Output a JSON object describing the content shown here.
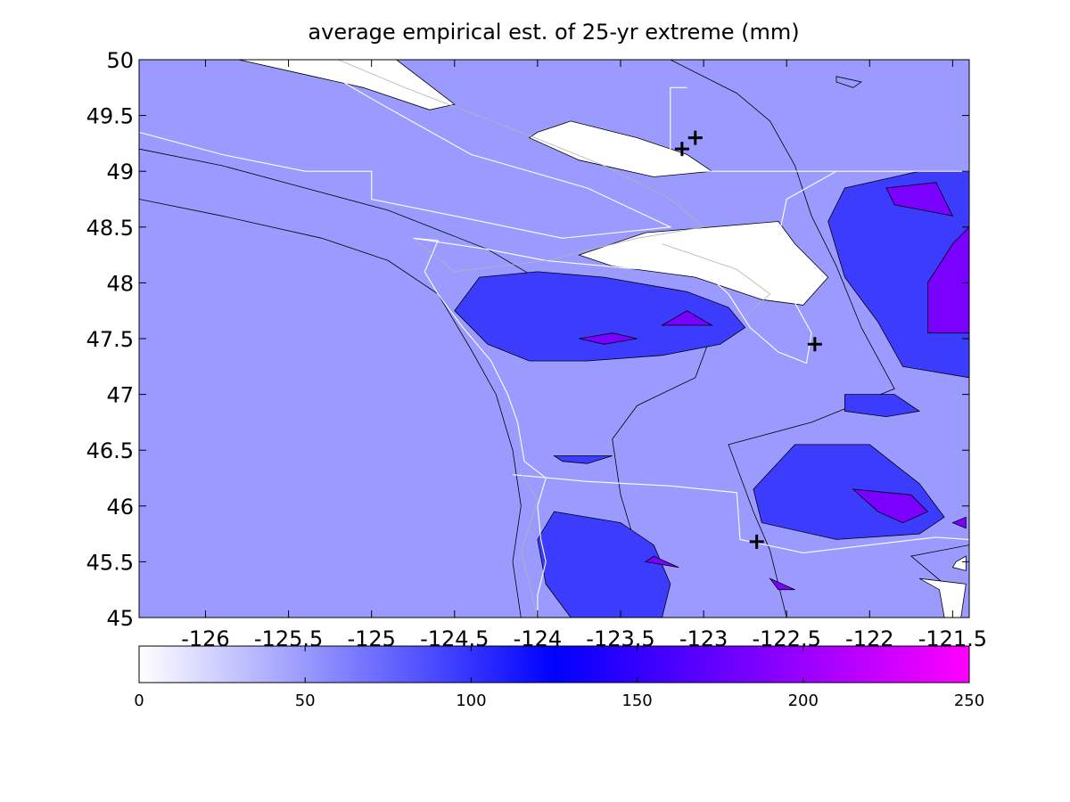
{
  "chart_data": {
    "type": "contour",
    "title": "average empirical est. of 25-yr extreme (mm)",
    "xlabel": "",
    "ylabel": "",
    "xlim": [
      -126.4,
      -121.4
    ],
    "ylim": [
      45,
      50
    ],
    "x_ticks": [
      -126,
      -125.5,
      -125,
      -124.5,
      -124,
      -123.5,
      -123,
      -122.5,
      -122,
      -121.5
    ],
    "x_tick_labels": [
      "-126",
      "-125.5",
      "-125",
      "-124.5",
      "-124",
      "-123.5",
      "-123",
      "-122.5",
      "-122",
      "-121.5"
    ],
    "y_ticks": [
      45,
      45.5,
      46,
      46.5,
      47,
      47.5,
      48,
      48.5,
      49,
      49.5,
      50
    ],
    "y_tick_labels": [
      "45",
      "45.5",
      "46",
      "46.5",
      "47",
      "47.5",
      "48",
      "48.5",
      "49",
      "49.5",
      "50"
    ],
    "contour_levels": [
      0,
      50,
      100,
      150,
      200,
      250
    ],
    "colormap": [
      {
        "value": 0,
        "color": "#ffffff"
      },
      {
        "value": 125,
        "color": "#0000ff"
      },
      {
        "value": 250,
        "color": "#ff00ff"
      }
    ],
    "colorbar": {
      "location": "below",
      "ticks": [
        0,
        50,
        100,
        150,
        200,
        250
      ],
      "tick_labels": [
        "0",
        "50",
        "100",
        "150",
        "200",
        "250"
      ]
    },
    "grid": false,
    "regions": [
      {
        "band": "50-100",
        "color": "#9b9bff",
        "points": [
          [
            -126.4,
            48.75
          ],
          [
            -125.9,
            48.6
          ],
          [
            -125.3,
            48.4
          ],
          [
            -124.9,
            48.2
          ],
          [
            -124.6,
            47.9
          ],
          [
            -124.4,
            47.4
          ],
          [
            -124.25,
            47.0
          ],
          [
            -124.15,
            46.5
          ],
          [
            -124.1,
            46.0
          ],
          [
            -124.15,
            45.5
          ],
          [
            -124.1,
            45.0
          ],
          [
            -126.4,
            45.0
          ]
        ]
      },
      {
        "band": "50-100",
        "color": "#9b9bff",
        "points": [
          [
            -126.4,
            50.0
          ],
          [
            -123.2,
            50.0
          ],
          [
            -122.8,
            49.7
          ],
          [
            -122.6,
            49.45
          ],
          [
            -122.45,
            49.05
          ],
          [
            -122.35,
            48.6
          ],
          [
            -122.2,
            48.15
          ],
          [
            -122.05,
            47.6
          ],
          [
            -121.85,
            47.05
          ],
          [
            -122.35,
            46.75
          ],
          [
            -122.85,
            46.55
          ],
          [
            -122.7,
            45.95
          ],
          [
            -122.6,
            45.6
          ],
          [
            -122.5,
            45.0
          ],
          [
            -123.25,
            45.0
          ],
          [
            -123.4,
            45.6
          ],
          [
            -123.5,
            46.1
          ],
          [
            -123.55,
            46.6
          ],
          [
            -123.4,
            46.9
          ],
          [
            -123.05,
            47.15
          ],
          [
            -122.95,
            47.55
          ],
          [
            -123.5,
            47.8
          ],
          [
            -123.9,
            47.95
          ],
          [
            -124.3,
            48.3
          ],
          [
            -124.9,
            48.65
          ],
          [
            -125.4,
            48.85
          ],
          [
            -125.9,
            49.05
          ],
          [
            -126.4,
            49.2
          ]
        ]
      },
      {
        "band": "50-100",
        "color": "#9b9bff",
        "points": [
          [
            -121.75,
            45.55
          ],
          [
            -121.55,
            45.3
          ],
          [
            -121.5,
            45.0
          ],
          [
            -121.4,
            45.0
          ],
          [
            -121.4,
            45.65
          ]
        ]
      },
      {
        "band": "50-100",
        "color": "#9b9bff",
        "points": [
          [
            -122.2,
            49.85
          ],
          [
            -122.05,
            49.8
          ],
          [
            -122.1,
            49.75
          ],
          [
            -122.2,
            49.8
          ]
        ]
      },
      {
        "band": "0-50",
        "color": "#ffffff",
        "points": [
          [
            -125.8,
            50.0
          ],
          [
            -124.85,
            50.0
          ],
          [
            -124.5,
            49.6
          ],
          [
            -124.65,
            49.55
          ],
          [
            -125.05,
            49.75
          ],
          [
            -125.35,
            49.85
          ]
        ]
      },
      {
        "band": "0-50",
        "color": "#ffffff",
        "points": [
          [
            -124.0,
            49.35
          ],
          [
            -123.8,
            49.45
          ],
          [
            -123.4,
            49.3
          ],
          [
            -123.1,
            49.15
          ],
          [
            -122.95,
            49.0
          ],
          [
            -123.3,
            48.95
          ],
          [
            -123.75,
            49.1
          ],
          [
            -124.05,
            49.3
          ]
        ]
      },
      {
        "band": "0-50",
        "color": "#ffffff",
        "points": [
          [
            -123.75,
            48.25
          ],
          [
            -123.35,
            48.45
          ],
          [
            -122.55,
            48.55
          ],
          [
            -122.45,
            48.35
          ],
          [
            -122.25,
            48.05
          ],
          [
            -122.4,
            47.8
          ],
          [
            -122.65,
            47.85
          ],
          [
            -123.05,
            48.05
          ],
          [
            -123.55,
            48.15
          ]
        ]
      },
      {
        "band": "0-50",
        "color": "#ffffff",
        "points": [
          [
            -121.7,
            45.35
          ],
          [
            -121.58,
            45.25
          ],
          [
            -121.55,
            45.0
          ],
          [
            -121.45,
            45.0
          ],
          [
            -121.42,
            45.3
          ]
        ]
      },
      {
        "band": "0-50",
        "color": "#ffffff",
        "points": [
          [
            -121.5,
            45.45
          ],
          [
            -121.42,
            45.42
          ],
          [
            -121.42,
            45.55
          ],
          [
            -121.48,
            45.5
          ]
        ]
      },
      {
        "band": "100-150",
        "color": "#3c3cff",
        "points": [
          [
            -124.35,
            48.05
          ],
          [
            -124.0,
            48.1
          ],
          [
            -123.6,
            48.05
          ],
          [
            -123.1,
            47.92
          ],
          [
            -122.85,
            47.78
          ],
          [
            -122.75,
            47.6
          ],
          [
            -122.9,
            47.45
          ],
          [
            -123.25,
            47.35
          ],
          [
            -123.7,
            47.3
          ],
          [
            -124.05,
            47.3
          ],
          [
            -124.3,
            47.45
          ],
          [
            -124.5,
            47.75
          ]
        ]
      },
      {
        "band": "100-150",
        "color": "#3c3cff",
        "points": [
          [
            -123.9,
            46.45
          ],
          [
            -123.55,
            46.45
          ],
          [
            -123.7,
            46.38
          ],
          [
            -123.85,
            46.4
          ]
        ]
      },
      {
        "band": "100-150",
        "color": "#3c3cff",
        "points": [
          [
            -123.9,
            45.95
          ],
          [
            -123.5,
            45.85
          ],
          [
            -123.3,
            45.65
          ],
          [
            -123.2,
            45.3
          ],
          [
            -123.25,
            45.0
          ],
          [
            -123.8,
            45.0
          ],
          [
            -123.95,
            45.3
          ],
          [
            -124.0,
            45.7
          ]
        ]
      },
      {
        "band": "100-150",
        "color": "#3c3cff",
        "points": [
          [
            -122.45,
            46.55
          ],
          [
            -122.0,
            46.55
          ],
          [
            -121.7,
            46.2
          ],
          [
            -121.55,
            45.9
          ],
          [
            -121.7,
            45.75
          ],
          [
            -122.2,
            45.7
          ],
          [
            -122.65,
            45.85
          ],
          [
            -122.7,
            46.15
          ]
        ]
      },
      {
        "band": "100-150",
        "color": "#3c3cff",
        "points": [
          [
            -121.7,
            49.0
          ],
          [
            -121.4,
            49.0
          ],
          [
            -121.4,
            47.15
          ],
          [
            -121.8,
            47.25
          ],
          [
            -121.95,
            47.65
          ],
          [
            -122.15,
            48.05
          ],
          [
            -122.25,
            48.55
          ],
          [
            -122.15,
            48.85
          ]
        ]
      },
      {
        "band": "100-150",
        "color": "#3c3cff",
        "points": [
          [
            -122.15,
            47.0
          ],
          [
            -121.85,
            47.0
          ],
          [
            -121.7,
            46.85
          ],
          [
            -121.9,
            46.8
          ],
          [
            -122.15,
            46.85
          ]
        ]
      },
      {
        "band": "150-200",
        "color": "#7a00ff",
        "points": [
          [
            -123.55,
            47.55
          ],
          [
            -123.4,
            47.5
          ],
          [
            -123.6,
            47.45
          ],
          [
            -123.75,
            47.5
          ]
        ]
      },
      {
        "band": "150-200",
        "color": "#7a00ff",
        "points": [
          [
            -123.1,
            47.75
          ],
          [
            -122.95,
            47.62
          ],
          [
            -123.25,
            47.62
          ]
        ]
      },
      {
        "band": "150-200",
        "color": "#7a00ff",
        "points": [
          [
            -122.1,
            46.15
          ],
          [
            -121.95,
            45.95
          ],
          [
            -121.8,
            45.85
          ],
          [
            -121.65,
            45.95
          ],
          [
            -121.75,
            46.1
          ]
        ]
      },
      {
        "band": "150-200",
        "color": "#7a00ff",
        "points": [
          [
            -121.5,
            45.85
          ],
          [
            -121.42,
            45.9
          ],
          [
            -121.42,
            45.8
          ]
        ]
      },
      {
        "band": "150-200",
        "color": "#7a00ff",
        "points": [
          [
            -121.6,
            48.9
          ],
          [
            -121.9,
            48.85
          ],
          [
            -121.85,
            48.7
          ],
          [
            -121.5,
            48.6
          ]
        ]
      },
      {
        "band": "150-200",
        "color": "#7a00ff",
        "points": [
          [
            -121.4,
            48.5
          ],
          [
            -121.4,
            47.55
          ],
          [
            -121.65,
            47.55
          ],
          [
            -121.65,
            48.0
          ],
          [
            -121.5,
            48.35
          ]
        ]
      },
      {
        "band": "150-200",
        "color": "#7a00ff",
        "points": [
          [
            -123.3,
            45.55
          ],
          [
            -123.15,
            45.45
          ],
          [
            -123.35,
            45.5
          ]
        ]
      },
      {
        "band": "150-200",
        "color": "#7a00ff",
        "points": [
          [
            -122.6,
            45.35
          ],
          [
            -122.45,
            45.25
          ],
          [
            -122.55,
            45.25
          ]
        ]
      }
    ],
    "coastline_outlines": [
      {
        "style": "white",
        "points": [
          [
            -124.75,
            48.4
          ],
          [
            -124.6,
            48.38
          ],
          [
            -124.68,
            48.1
          ],
          [
            -124.6,
            47.9
          ],
          [
            -124.45,
            47.6
          ],
          [
            -124.28,
            47.3
          ],
          [
            -124.18,
            47.0
          ],
          [
            -124.12,
            46.75
          ],
          [
            -124.08,
            46.4
          ],
          [
            -123.95,
            46.25
          ],
          [
            -124.0,
            46.0
          ],
          [
            -123.98,
            45.7
          ],
          [
            -123.95,
            45.5
          ],
          [
            -124.0,
            45.2
          ],
          [
            -124.0,
            45.0
          ]
        ]
      },
      {
        "style": "white",
        "points": [
          [
            -124.75,
            48.4
          ],
          [
            -124.3,
            48.3
          ],
          [
            -123.95,
            48.2
          ],
          [
            -123.45,
            48.13
          ],
          [
            -123.0,
            48.1
          ],
          [
            -122.85,
            47.9
          ],
          [
            -122.72,
            47.6
          ],
          [
            -122.55,
            47.38
          ],
          [
            -122.38,
            47.28
          ],
          [
            -122.35,
            47.55
          ],
          [
            -122.45,
            47.82
          ],
          [
            -122.38,
            48.1
          ],
          [
            -122.55,
            48.4
          ],
          [
            -122.5,
            48.75
          ],
          [
            -122.2,
            49.0
          ]
        ]
      },
      {
        "style": "white",
        "points": [
          [
            -124.15,
            46.28
          ],
          [
            -123.7,
            46.22
          ],
          [
            -123.2,
            46.18
          ],
          [
            -122.8,
            46.12
          ],
          [
            -122.78,
            45.7
          ],
          [
            -122.4,
            45.58
          ],
          [
            -122.0,
            45.65
          ],
          [
            -121.6,
            45.72
          ],
          [
            -121.4,
            45.7
          ]
        ]
      },
      {
        "style": "white",
        "points": [
          [
            -123.1,
            49.75
          ],
          [
            -123.2,
            49.75
          ],
          [
            -123.2,
            49.0
          ],
          [
            -121.4,
            49.0
          ]
        ]
      },
      {
        "style": "white",
        "points": [
          [
            -126.4,
            49.35
          ],
          [
            -125.9,
            49.15
          ],
          [
            -125.4,
            49.0
          ],
          [
            -125.0,
            49.0
          ],
          [
            -125.0,
            48.75
          ],
          [
            -124.5,
            48.6
          ],
          [
            -123.85,
            48.4
          ],
          [
            -123.2,
            48.5
          ],
          [
            -123.7,
            48.85
          ],
          [
            -124.4,
            49.15
          ],
          [
            -125.0,
            49.65
          ],
          [
            -125.4,
            50.0
          ]
        ]
      },
      {
        "style": "gray",
        "points": [
          [
            -125.2,
            50.0
          ],
          [
            -124.8,
            49.75
          ],
          [
            -124.1,
            49.35
          ],
          [
            -123.6,
            49.05
          ],
          [
            -123.2,
            48.75
          ],
          [
            -123.0,
            48.5
          ],
          [
            -123.4,
            48.4
          ],
          [
            -123.95,
            48.2
          ],
          [
            -124.5,
            48.1
          ],
          [
            -124.75,
            48.4
          ]
        ]
      },
      {
        "style": "gray",
        "points": [
          [
            -123.25,
            48.35
          ],
          [
            -122.8,
            48.12
          ],
          [
            -122.6,
            47.9
          ],
          [
            -122.75,
            47.7
          ]
        ]
      },
      {
        "style": "gray",
        "points": [
          [
            -124.0,
            45.0
          ],
          [
            -124.1,
            45.6
          ],
          [
            -124.0,
            46.05
          ],
          [
            -124.1,
            46.3
          ]
        ]
      }
    ],
    "markers": [
      {
        "lon": -123.13,
        "lat": 49.2
      },
      {
        "lon": -123.05,
        "lat": 49.3
      },
      {
        "lon": -122.33,
        "lat": 47.45
      },
      {
        "lon": -122.68,
        "lat": 45.68
      }
    ]
  }
}
